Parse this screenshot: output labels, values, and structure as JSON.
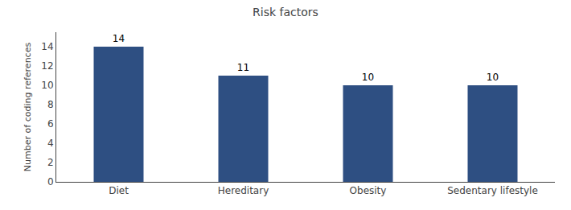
{
  "chart_data": {
    "type": "bar",
    "title": "Risk factors",
    "ylabel": "Number of coding references",
    "categories": [
      "Diet",
      "Hereditary",
      "Obesity",
      "Sedentary lifestyle"
    ],
    "values": [
      14,
      11,
      10,
      10
    ],
    "color": "#2e4f82",
    "ylim": [
      0,
      15.5
    ],
    "yticks": [
      0,
      2,
      4,
      6,
      8,
      10,
      12,
      14
    ],
    "grid": false,
    "data_labels": true
  }
}
